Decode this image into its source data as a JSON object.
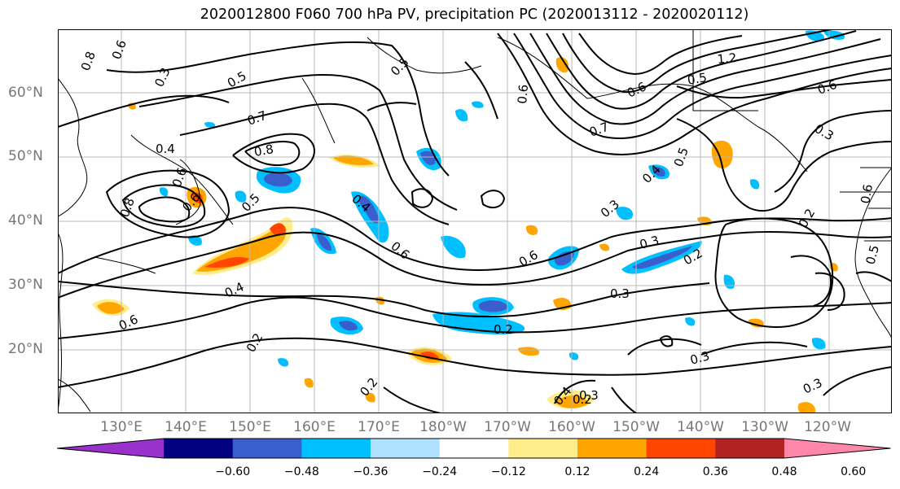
{
  "title": "2020012800 F060 700 hPa PV, precipitation PC (2020013112 - 2020020112)",
  "lat_labels": [
    "60°N",
    "50°N",
    "40°N",
    "30°N",
    "20°N"
  ],
  "lon_labels": [
    "130°E",
    "140°E",
    "150°E",
    "160°E",
    "170°E",
    "180°W",
    "170°W",
    "160°W",
    "150°W",
    "140°W",
    "130°W",
    "120°W"
  ],
  "colorbar": {
    "ticks": [
      "−0.60",
      "−0.48",
      "−0.36",
      "−0.24",
      "−0.12",
      "0.12",
      "0.24",
      "0.36",
      "0.48",
      "0.60"
    ],
    "colors": [
      "#9932cc",
      "#000080",
      "#3a5fcd",
      "#00bfff",
      "#b0e2ff",
      "#ffffff",
      "#ffec8b",
      "#ffa500",
      "#ff4500",
      "#b22222",
      "#ff88aa"
    ]
  },
  "contour_labels": [
    "0.8",
    "0.6",
    "0.3",
    "0.5",
    "0.7",
    "0.4",
    "0.8",
    "0.6",
    "0.6",
    "0.5",
    "0.8",
    "0.4",
    "0.6",
    "0.5",
    "0.4",
    "0.6",
    "0.3",
    "0.2",
    "0.3",
    "0.4",
    "0.5",
    "0.3",
    "0.2",
    "0.3",
    "0.6",
    "0.2",
    "0.3",
    "0.2",
    "0.2",
    "0.3",
    "0.2",
    "0.6",
    "0.7",
    "0.6",
    "1.2",
    "0.5",
    "0.6",
    "0.3",
    "0.5",
    "0.6",
    "0.4"
  ]
}
